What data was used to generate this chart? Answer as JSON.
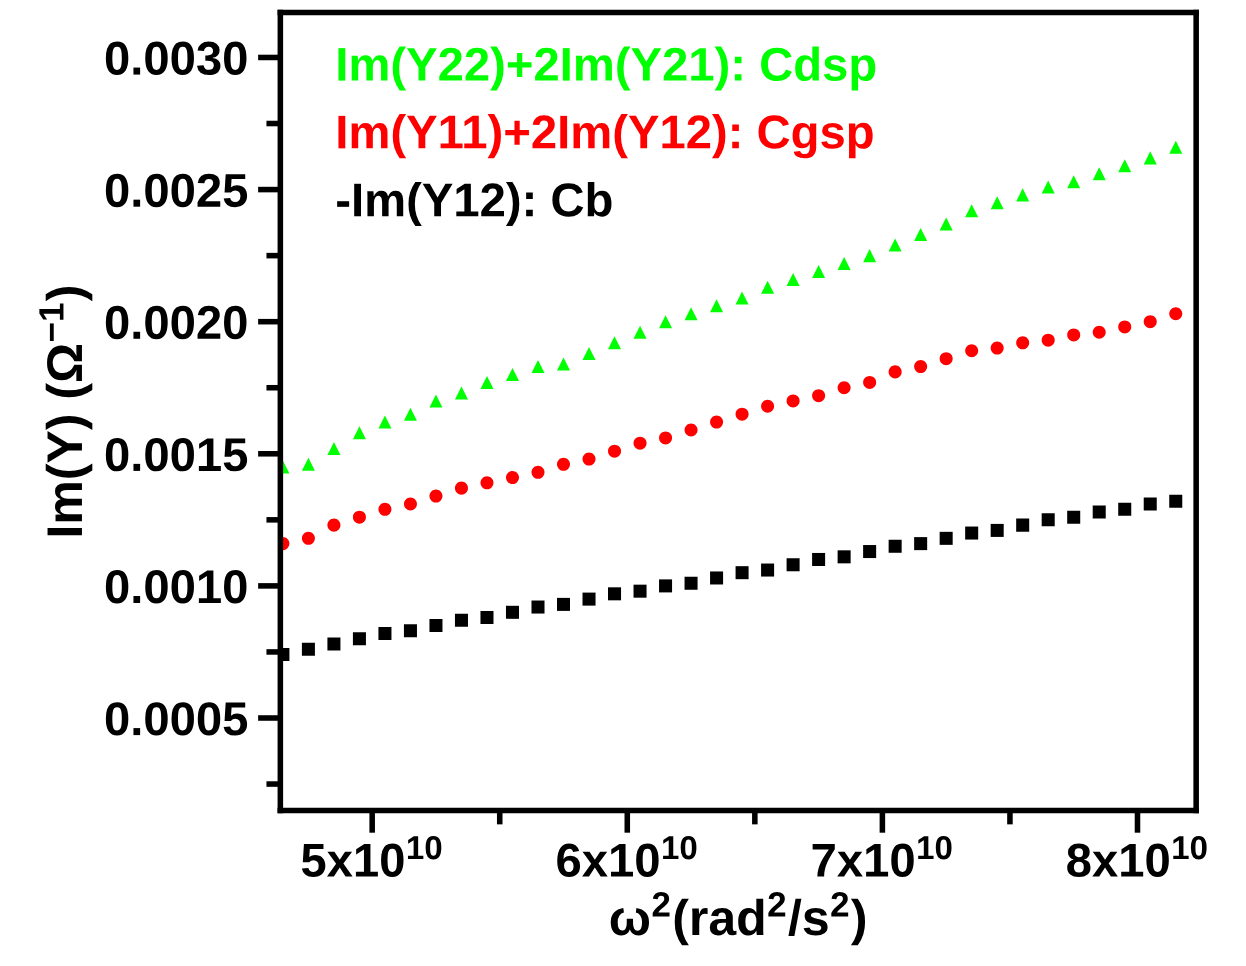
{
  "chart_data": {
    "type": "scatter",
    "xlabel": "ω$^{2}$(rad$^{2}$/s$^{2}$)",
    "ylabel": "Im(Y) (Ω$^{−1}$)",
    "x": [
      46500000000.0,
      47500000000.0,
      48500000000.0,
      49500000000.0,
      50500000000.0,
      51500000000.0,
      52500000000.0,
      53500000000.0,
      54500000000.0,
      55500000000.0,
      56500000000.0,
      57500000000.0,
      58500000000.0,
      59500000000.0,
      60500000000.0,
      61500000000.0,
      62500000000.0,
      63500000000.0,
      64500000000.0,
      65500000000.0,
      66500000000.0,
      67500000000.0,
      68500000000.0,
      69500000000.0,
      70500000000.0,
      71500000000.0,
      72500000000.0,
      73500000000.0,
      74500000000.0,
      75500000000.0,
      76500000000.0,
      77500000000.0,
      78500000000.0,
      79500000000.0,
      80500000000.0,
      81500000000.0
    ],
    "series": [
      {
        "name": "Im(Y22)+2Im(Y21): Cdsp",
        "color": "#00ff00",
        "marker": "triangle",
        "values": [
          0.00145,
          0.00146,
          0.00152,
          0.00158,
          0.00162,
          0.00165,
          0.0017,
          0.00173,
          0.00177,
          0.0018,
          0.00183,
          0.00184,
          0.00188,
          0.00192,
          0.00196,
          0.002,
          0.00203,
          0.00206,
          0.00209,
          0.00213,
          0.00216,
          0.00219,
          0.00222,
          0.00225,
          0.00229,
          0.00233,
          0.00237,
          0.00242,
          0.00245,
          0.00248,
          0.00251,
          0.00253,
          0.00256,
          0.00259,
          0.00262,
          0.00266
        ]
      },
      {
        "name": "Im(Y11)+2Im(Y12): Cgsp",
        "color": "#ff0000",
        "marker": "circle",
        "values": [
          0.00116,
          0.00118,
          0.00123,
          0.00126,
          0.00129,
          0.00131,
          0.00134,
          0.00137,
          0.00139,
          0.00141,
          0.00143,
          0.00146,
          0.00148,
          0.00151,
          0.00154,
          0.00156,
          0.00159,
          0.00162,
          0.00165,
          0.00168,
          0.0017,
          0.00172,
          0.00175,
          0.00177,
          0.00181,
          0.00183,
          0.00186,
          0.00189,
          0.0019,
          0.00192,
          0.00193,
          0.00195,
          0.00196,
          0.00198,
          0.002,
          0.00203
        ]
      },
      {
        "name": "-Im(Y12): Cb",
        "color": "#000000",
        "marker": "square",
        "values": [
          0.00074,
          0.00076,
          0.00078,
          0.0008,
          0.00082,
          0.00083,
          0.00085,
          0.00087,
          0.00088,
          0.0009,
          0.00092,
          0.00093,
          0.00095,
          0.00097,
          0.00098,
          0.001,
          0.00101,
          0.00103,
          0.00105,
          0.00106,
          0.00108,
          0.0011,
          0.00111,
          0.00113,
          0.00115,
          0.00116,
          0.00118,
          0.0012,
          0.00121,
          0.00123,
          0.00125,
          0.00126,
          0.00128,
          0.00129,
          0.00131,
          0.00132
        ]
      }
    ],
    "xlim": [
      46400000000.0,
      82300000000.0
    ],
    "xticks": [
      {
        "value": 50000000000.0,
        "label": "5x10$^{10}$"
      },
      {
        "value": 55000000000.0,
        "label": null
      },
      {
        "value": 60000000000.0,
        "label": "6x10$^{10}$"
      },
      {
        "value": 65000000000.0,
        "label": null
      },
      {
        "value": 70000000000.0,
        "label": "7x10$^{10}$"
      },
      {
        "value": 75000000000.0,
        "label": null
      },
      {
        "value": 80000000000.0,
        "label": "8x10$^{10}$"
      }
    ],
    "ylim": [
      0.00015,
      0.00317
    ],
    "yticks": [
      {
        "value": 0.00025,
        "label": null
      },
      {
        "value": 0.0005,
        "label": "0.0005"
      },
      {
        "value": 0.00075,
        "label": null
      },
      {
        "value": 0.001,
        "label": "0.0010"
      },
      {
        "value": 0.00125,
        "label": null
      },
      {
        "value": 0.0015,
        "label": "0.0015"
      },
      {
        "value": 0.00175,
        "label": null
      },
      {
        "value": 0.002,
        "label": "0.0020"
      },
      {
        "value": 0.00225,
        "label": null
      },
      {
        "value": 0.0025,
        "label": "0.0025"
      },
      {
        "value": 0.00275,
        "label": null
      },
      {
        "value": 0.003,
        "label": "0.0030"
      }
    ],
    "grid": false,
    "legend": "top left"
  }
}
